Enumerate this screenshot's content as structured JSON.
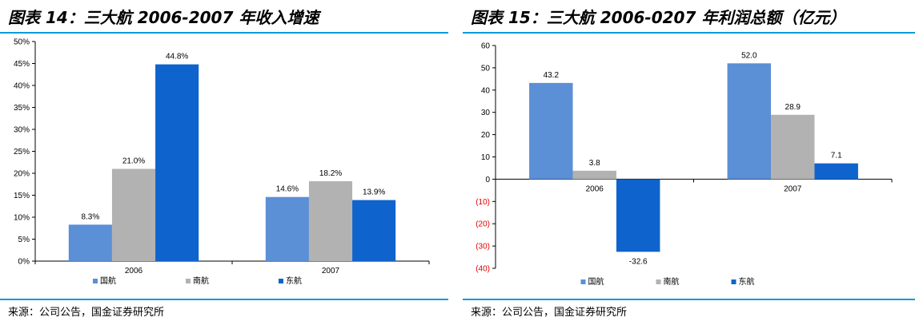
{
  "colors": {
    "accent_rule": "#0a9ad8",
    "negative_tick": "#e00000"
  },
  "charts": [
    {
      "title": "图表 14：三大航 2006-2007 年收入增速",
      "source": "来源：公司公告，国金证券研究所",
      "chart_data": {
        "type": "bar",
        "categories": [
          "2006",
          "2007"
        ],
        "series": [
          {
            "name": "国航",
            "color": "#5b8fd6",
            "values": [
              8.3,
              14.6
            ],
            "labels": [
              "8.3%",
              "14.6%"
            ]
          },
          {
            "name": "南航",
            "color": "#b2b2b2",
            "values": [
              21.0,
              18.2
            ],
            "labels": [
              "21.0%",
              "18.2%"
            ]
          },
          {
            "name": "东航",
            "color": "#0f63cc",
            "values": [
              44.8,
              13.9
            ],
            "labels": [
              "44.8%",
              "13.9%"
            ]
          }
        ],
        "ylim": [
          0,
          50
        ],
        "yticks": [
          0,
          5,
          10,
          15,
          20,
          25,
          30,
          35,
          40,
          45,
          50
        ],
        "ytick_labels": [
          "0%",
          "5%",
          "10%",
          "15%",
          "20%",
          "25%",
          "30%",
          "35%",
          "40%",
          "45%",
          "50%"
        ],
        "xlabel": "",
        "ylabel": "",
        "grid": false,
        "legend": "bottom"
      }
    },
    {
      "title": "图表 15：三大航 2006-0207 年利润总额（亿元）",
      "source": "来源：公司公告，国金证券研究所",
      "chart_data": {
        "type": "bar",
        "categories": [
          "2006",
          "2007"
        ],
        "series": [
          {
            "name": "国航",
            "color": "#5b8fd6",
            "values": [
              43.2,
              52.0
            ],
            "labels": [
              "43.2",
              "52.0"
            ]
          },
          {
            "name": "南航",
            "color": "#b2b2b2",
            "values": [
              3.8,
              28.9
            ],
            "labels": [
              "3.8",
              "28.9"
            ]
          },
          {
            "name": "东航",
            "color": "#0f63cc",
            "values": [
              -32.6,
              7.1
            ],
            "labels": [
              "-32.6",
              "7.1"
            ]
          }
        ],
        "ylim": [
          -40,
          60
        ],
        "yticks": [
          60,
          50,
          40,
          30,
          20,
          10,
          0,
          -10,
          -20,
          -30,
          -40
        ],
        "ytick_labels": [
          "60",
          "50",
          "40",
          "30",
          "20",
          "10",
          "0",
          "(10)",
          "(20)",
          "(30)",
          "(40)"
        ],
        "xlabel": "",
        "ylabel": "",
        "grid": false,
        "legend": "bottom"
      }
    }
  ]
}
